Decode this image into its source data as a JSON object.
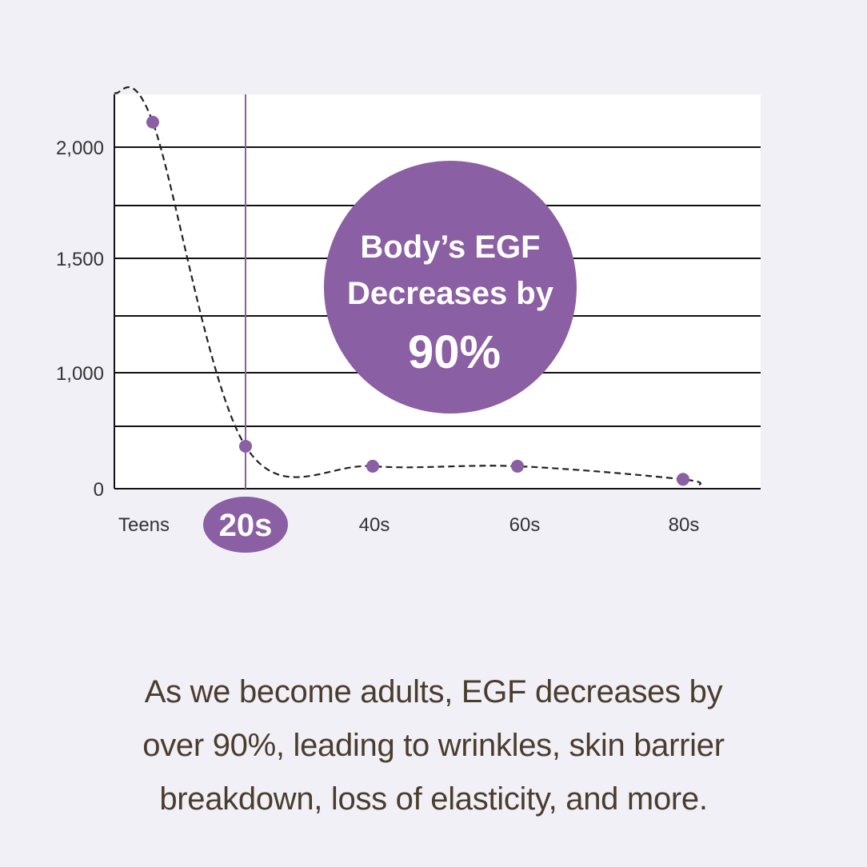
{
  "chart_data": {
    "type": "line",
    "title": "",
    "xlabel": "",
    "ylabel": "",
    "categories": [
      "Teens",
      "20s",
      "40s",
      "60s",
      "80s"
    ],
    "highlighted_category": "20s",
    "values": [
      2115,
      340,
      180,
      180,
      75
    ],
    "yticks": [
      0,
      1000,
      1500,
      2000
    ],
    "ytick_labels": [
      "0",
      "1,000",
      "1,500",
      "2,000"
    ],
    "gridlines": [
      500,
      1000,
      1250,
      1500,
      1750,
      2000
    ],
    "ylim": [
      0,
      2250
    ],
    "grid": true,
    "line_style": "dashed-smooth",
    "annotation": {
      "line1": "Body’s EGF",
      "line2": "Decreases by",
      "line3": "90%"
    },
    "colors": {
      "accent": "#8b5fa3",
      "line": "#222222",
      "plot_bg": "#ffffff",
      "page_bg": "#f1f0f6"
    }
  },
  "caption": {
    "line1": "As we become adults, EGF decreases by",
    "line2": "over 90%, leading to wrinkles, skin barrier",
    "line3": "breakdown, loss of elasticity, and more."
  }
}
